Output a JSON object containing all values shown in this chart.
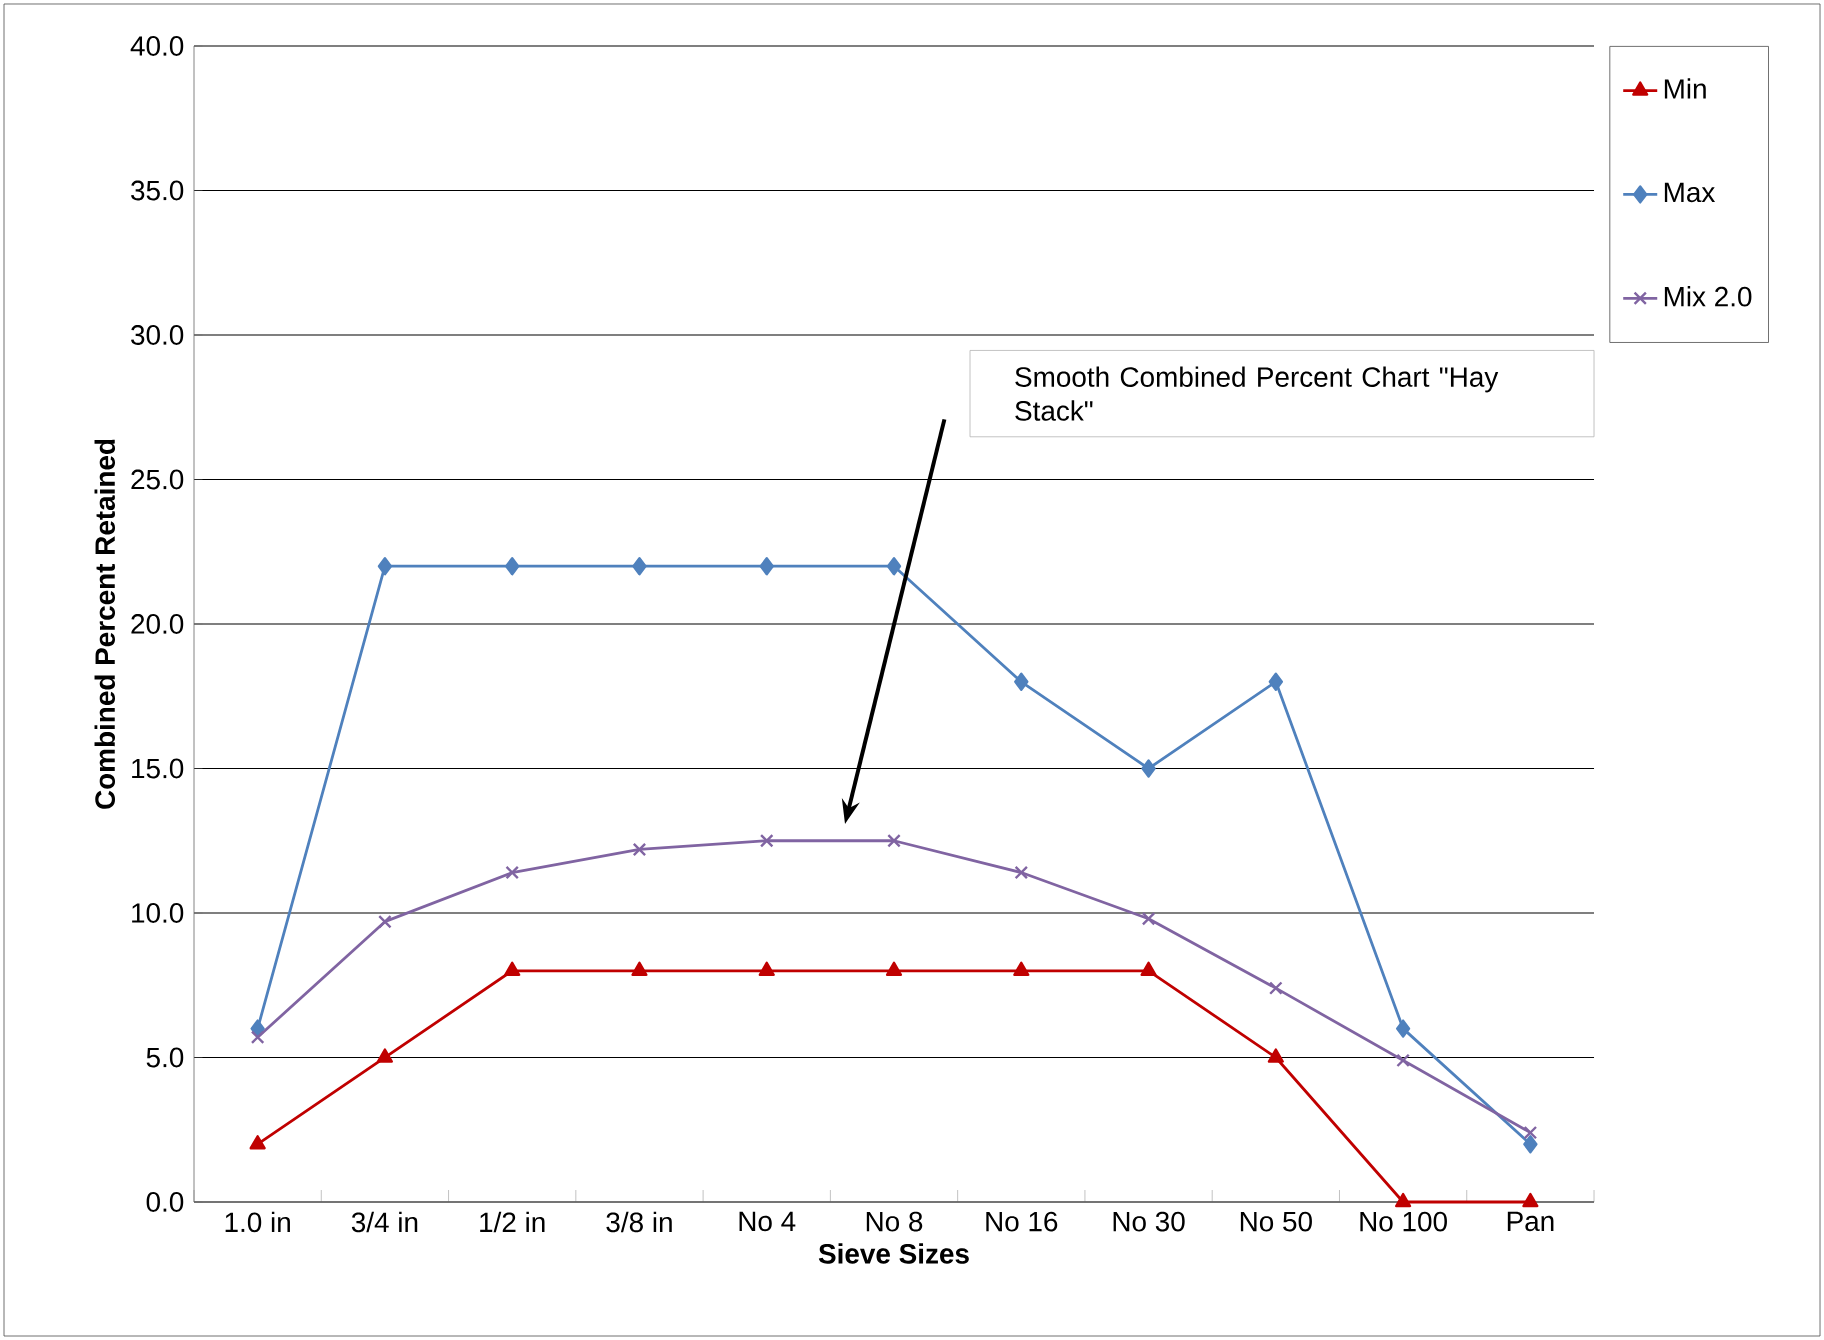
{
  "chart_data": {
    "type": "line",
    "xlabel": "Sieve Sizes",
    "ylabel": "Combined Percent Retained",
    "categories": [
      "1.0 in",
      "3/4 in",
      "1/2 in",
      "3/8 in",
      "No 4",
      "No 8",
      "No 16",
      "No 30",
      "No 50",
      "No 100",
      "Pan"
    ],
    "series": [
      {
        "name": "Min",
        "color": "#c00000",
        "marker": "triangle",
        "values": [
          2,
          5,
          8,
          8,
          8,
          8,
          8,
          8,
          5,
          0,
          0
        ]
      },
      {
        "name": "Max",
        "color": "#4f81bd",
        "marker": "diamond",
        "values": [
          6,
          22,
          22,
          22,
          22,
          22,
          18,
          15,
          18,
          6,
          2
        ]
      },
      {
        "name": "Mix 2.0",
        "color": "#8064a2",
        "marker": "cross",
        "values": [
          5.7,
          9.7,
          11.4,
          12.2,
          12.5,
          12.5,
          11.4,
          9.8,
          7.4,
          4.9,
          2.4
        ]
      }
    ],
    "ylim": [
      0,
      40
    ],
    "yticks": [
      {
        "value": 0,
        "label": "0.0"
      },
      {
        "value": 5,
        "label": "5.0"
      },
      {
        "value": 10,
        "label": "10.0"
      },
      {
        "value": 15,
        "label": "15.0"
      },
      {
        "value": 20,
        "label": "20.0"
      },
      {
        "value": 25,
        "label": "25.0"
      },
      {
        "value": 30,
        "label": "30.0"
      },
      {
        "value": 35,
        "label": "35.0"
      },
      {
        "value": 40,
        "label": "40.0"
      }
    ],
    "grid": "y",
    "legend": "right",
    "annotations": [
      "Smooth Combined Percent  Chart \"Hay Stack\""
    ]
  }
}
